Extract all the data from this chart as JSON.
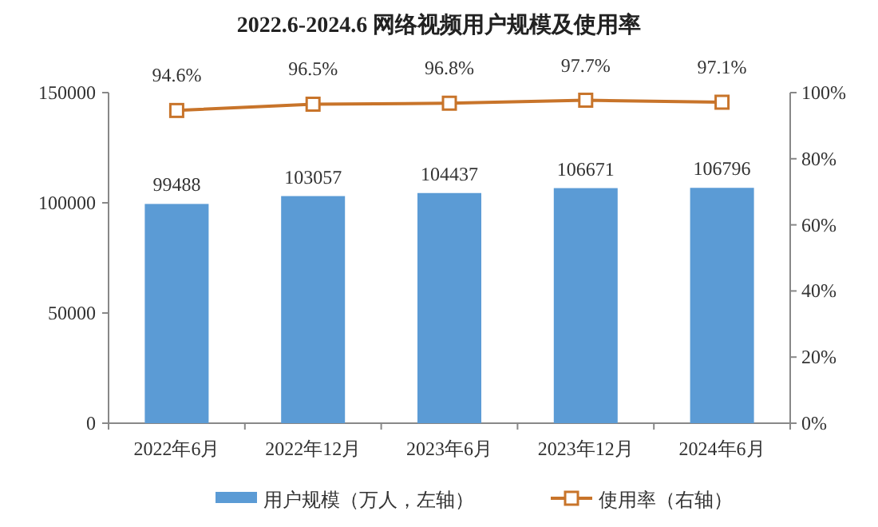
{
  "chart_data": {
    "type": "bar",
    "title": "2022.6-2024.6 网络视频用户规模及使用率",
    "categories": [
      "2022年6月",
      "2022年12月",
      "2023年6月",
      "2023年12月",
      "2024年6月"
    ],
    "series": [
      {
        "name": "用户规模（万人，左轴）",
        "color": "#5b9bd5",
        "values": [
          99488,
          103057,
          104437,
          106671,
          106796
        ],
        "value_labels": [
          "99488",
          "103057",
          "104437",
          "106671",
          "106796"
        ]
      },
      {
        "name": "使用率（右轴）",
        "type": "line",
        "axis": "y2",
        "color": "#c8742a",
        "marker": "square",
        "line_style": "solid",
        "values": [
          94.6,
          96.5,
          96.8,
          97.7,
          97.1
        ],
        "value_labels": [
          "94.6%",
          "96.5%",
          "96.8%",
          "97.7%",
          "97.1%"
        ]
      }
    ],
    "ylim": [
      0,
      150000
    ],
    "yticks": [
      0,
      50000,
      100000,
      150000
    ],
    "y2lim": [
      0,
      100
    ],
    "y2ticks": [
      {
        "value": 0,
        "label": "0%"
      },
      {
        "value": 20,
        "label": "20%"
      },
      {
        "value": 40,
        "label": "40%"
      },
      {
        "value": 60,
        "label": "60%"
      },
      {
        "value": 80,
        "label": "80%"
      },
      {
        "value": 100,
        "label": "100%"
      }
    ],
    "legend": "bottom"
  }
}
